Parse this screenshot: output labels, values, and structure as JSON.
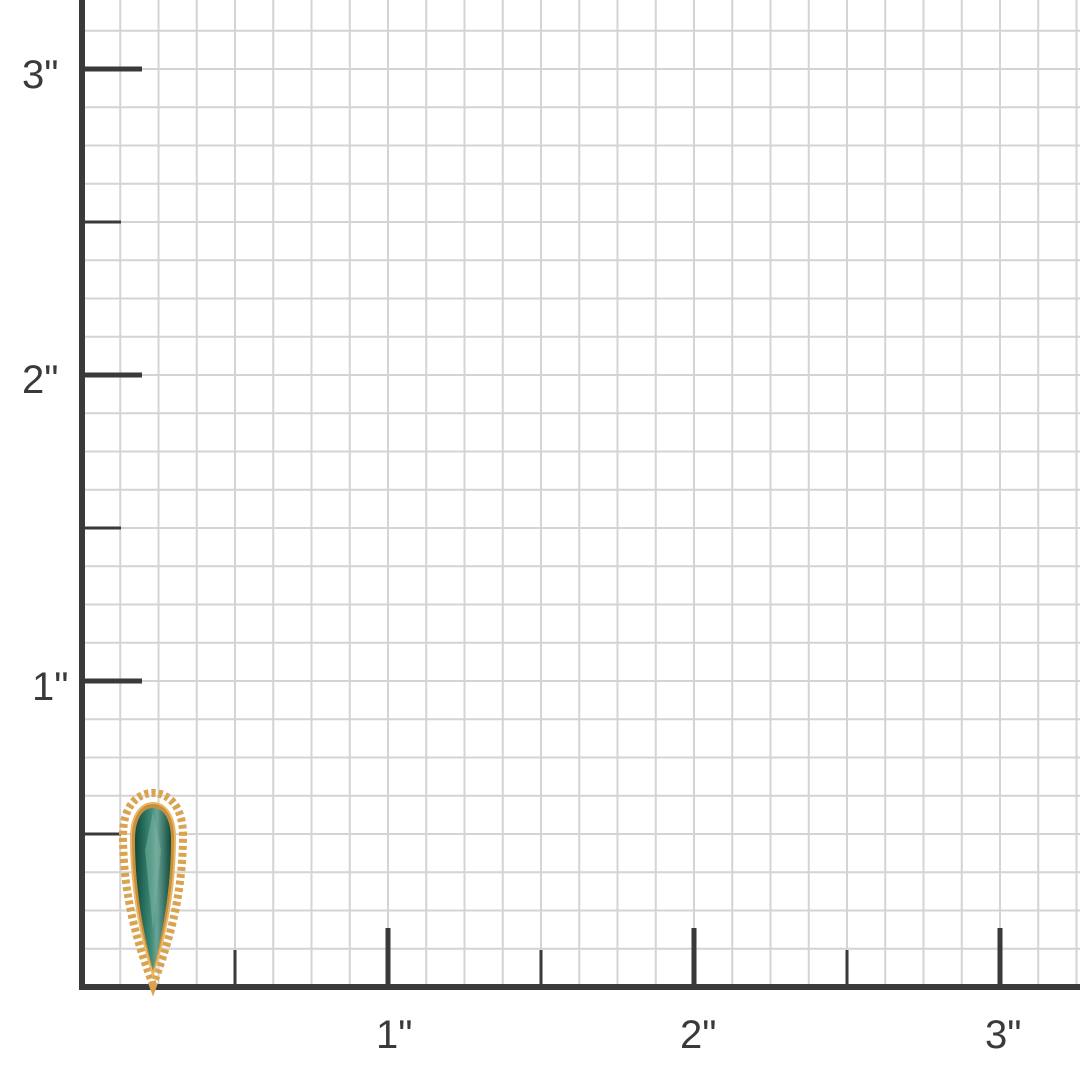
{
  "ruler": {
    "unit_symbol": "\"",
    "y_labels": [
      "1\"",
      "2\"",
      "3\""
    ],
    "x_labels": [
      "1\"",
      "2\"",
      "3\""
    ],
    "subdivisions_per_inch": 8
  },
  "colors": {
    "grid": "#d4d4d4",
    "axis": "#3a3a3a",
    "gold": "#d9a34f",
    "gem": "#1f6b5a"
  },
  "product": {
    "type": "teardrop-gem-pendant-icon"
  }
}
